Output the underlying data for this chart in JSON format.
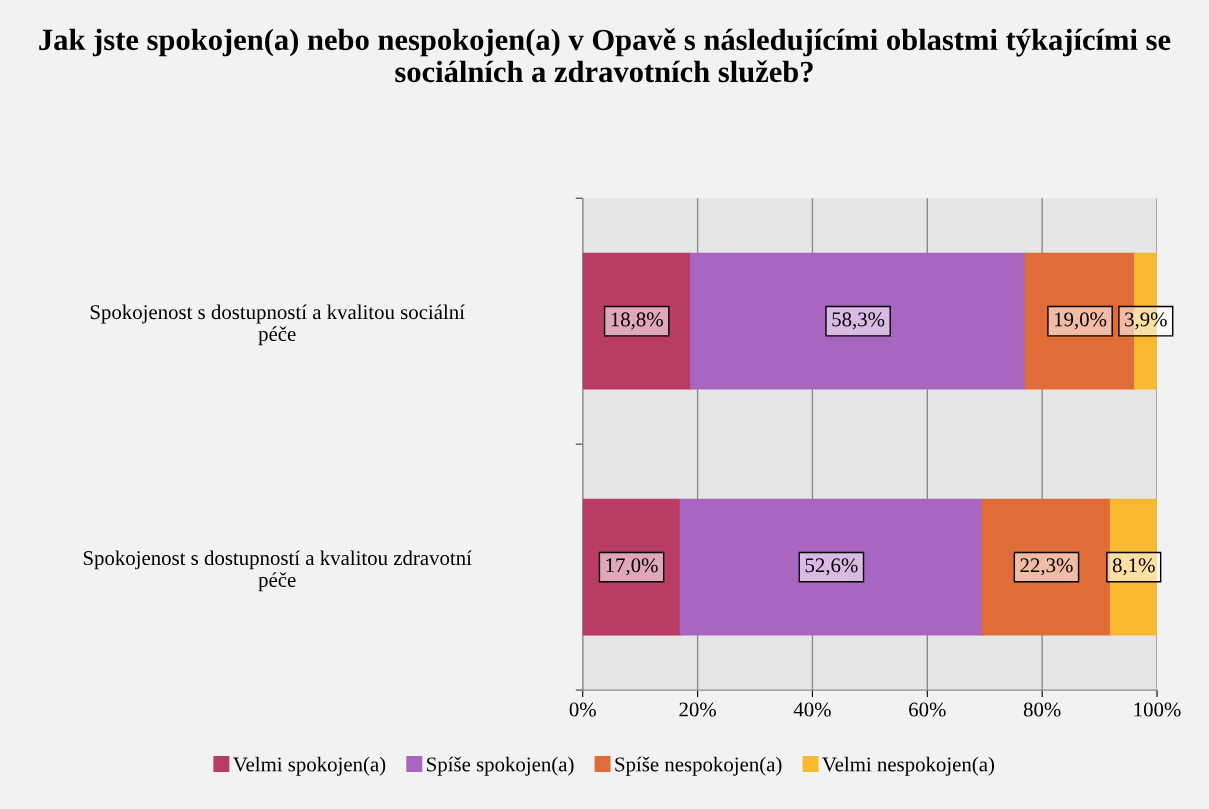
{
  "chart_data": {
    "type": "bar",
    "orientation": "horizontal",
    "stacked": true,
    "title": "Jak jste spokojen(a) nebo nespokojen(a) v Opavě s následujícími oblastmi týkajícími se sociálních a zdravotních služeb?",
    "categories": [
      "Spokojenost s dostupností a kvalitou sociální péče",
      "Spokojenost s dostupností a kvalitou zdravotní péče"
    ],
    "series": [
      {
        "name": "Velmi spokojen(a)",
        "color": "#b83c64",
        "values": [
          18.8,
          17.0
        ],
        "value_labels": [
          "18,8%",
          "17,0%"
        ]
      },
      {
        "name": "Spíše spokojen(a)",
        "color": "#a866c0",
        "values": [
          58.3,
          52.6
        ],
        "value_labels": [
          "58,3%",
          "52,6%"
        ]
      },
      {
        "name": "Spíše nespokojen(a)",
        "color": "#e06c38",
        "values": [
          19.0,
          22.3
        ],
        "value_labels": [
          "19,0%",
          "22,3%"
        ]
      },
      {
        "name": "Velmi nespokojen(a)",
        "color": "#f8b832",
        "values": [
          3.9,
          8.1
        ],
        "value_labels": [
          "3,9%",
          "8,1%"
        ]
      }
    ],
    "xlim": [
      0,
      100
    ],
    "xticks": [
      {
        "value": 0,
        "label": "0%"
      },
      {
        "value": 20,
        "label": "20%"
      },
      {
        "value": 40,
        "label": "40%"
      },
      {
        "value": 60,
        "label": "60%"
      },
      {
        "value": 80,
        "label": "80%"
      },
      {
        "value": 100,
        "label": "100%"
      }
    ],
    "grid": "x",
    "legend": "bottom"
  }
}
